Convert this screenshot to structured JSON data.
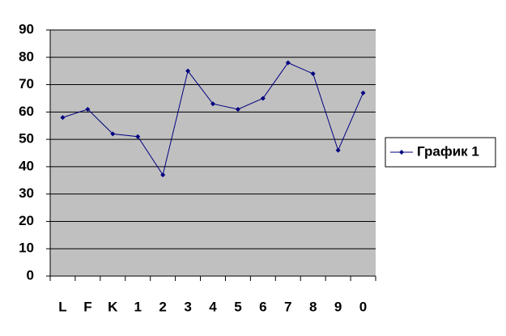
{
  "chart_data": {
    "type": "line",
    "categories": [
      "L",
      "F",
      "K",
      "1",
      "2",
      "3",
      "4",
      "5",
      "6",
      "7",
      "8",
      "9",
      "0"
    ],
    "series": [
      {
        "name": "График 1",
        "color": "#000080",
        "values": [
          58,
          61,
          52,
          51,
          37,
          75,
          63,
          61,
          65,
          78,
          74,
          46,
          67
        ]
      }
    ],
    "ylim": [
      0,
      90
    ],
    "yticks": [
      0,
      10,
      20,
      30,
      40,
      50,
      60,
      70,
      80,
      90
    ],
    "grid": true,
    "legend": "right"
  }
}
